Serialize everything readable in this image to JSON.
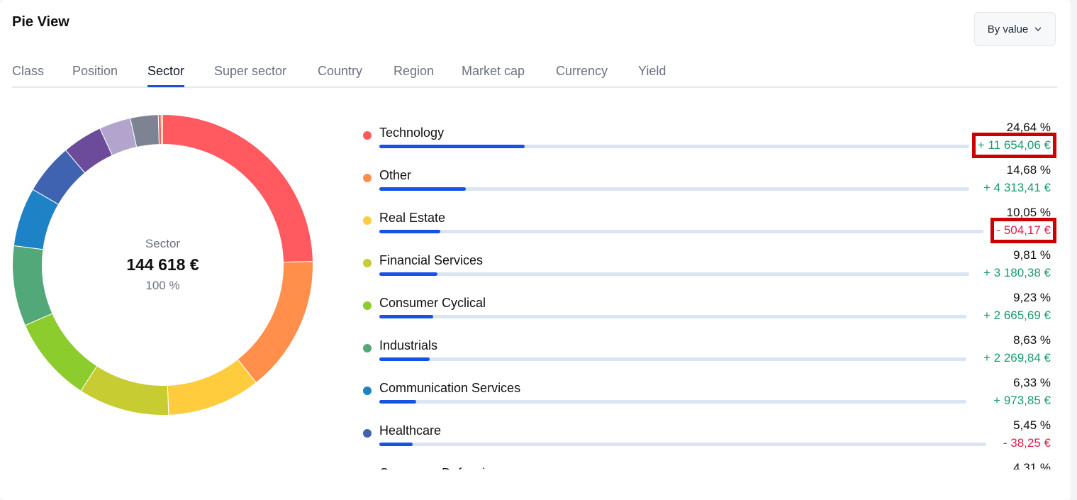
{
  "header": {
    "title": "Pie View",
    "sort_label": "By value"
  },
  "tabs": [
    {
      "label": "Class",
      "active": false
    },
    {
      "label": "Position",
      "active": false
    },
    {
      "label": "Sector",
      "active": true
    },
    {
      "label": "Super sector",
      "active": false
    },
    {
      "label": "Country",
      "active": false
    },
    {
      "label": "Region",
      "active": false
    },
    {
      "label": "Market cap",
      "active": false
    },
    {
      "label": "Currency",
      "active": false
    },
    {
      "label": "Yield",
      "active": false
    }
  ],
  "donut": {
    "label": "Sector",
    "total": "144 618 €",
    "total_pct": "100 %"
  },
  "chart_data": {
    "type": "pie",
    "slices": [
      {
        "label": "Technology",
        "value": 24.64,
        "color": "#ff5a5f"
      },
      {
        "label": "Other",
        "value": 14.68,
        "color": "#ff8f4a"
      },
      {
        "label": "Real Estate",
        "value": 10.05,
        "color": "#ffcc3d"
      },
      {
        "label": "Financial Services",
        "value": 9.81,
        "color": "#c8cc33"
      },
      {
        "label": "Consumer Cyclical",
        "value": 9.23,
        "color": "#8ccc2c"
      },
      {
        "label": "Industrials",
        "value": 8.63,
        "color": "#52a879"
      },
      {
        "label": "Communication Services",
        "value": 6.33,
        "color": "#1e82c6"
      },
      {
        "label": "Healthcare",
        "value": 5.45,
        "color": "#3f63b0"
      },
      {
        "label": "",
        "value": 4.31,
        "color": "#6b4b9a"
      },
      {
        "label": "",
        "value": 3.4,
        "color": "#b2a4cc"
      },
      {
        "label": "",
        "value": 3.0,
        "color": "#7d8393"
      },
      {
        "label": "",
        "value": 0.3,
        "color": "#ff5a5f"
      },
      {
        "label": "",
        "value": 0.17,
        "color": "#ffa040"
      }
    ]
  },
  "sectors": [
    {
      "name": "Technology",
      "pct": "24,64 %",
      "change": "+ 11 654,06 €",
      "sign": "pos",
      "fraction": 0.2464,
      "color": "#ff5a5f",
      "highlight": true
    },
    {
      "name": "Other",
      "pct": "14,68 %",
      "change": "+ 4 313,41 €",
      "sign": "pos",
      "fraction": 0.1468,
      "color": "#ff8f4a",
      "highlight": false
    },
    {
      "name": "Real Estate",
      "pct": "10,05 %",
      "change": "- 504,17 €",
      "sign": "neg",
      "fraction": 0.1005,
      "color": "#ffcc3d",
      "highlight": true
    },
    {
      "name": "Financial Services",
      "pct": "9,81 %",
      "change": "+ 3 180,38 €",
      "sign": "pos",
      "fraction": 0.0981,
      "color": "#c8cc33",
      "highlight": false
    },
    {
      "name": "Consumer Cyclical",
      "pct": "9,23 %",
      "change": "+ 2 665,69 €",
      "sign": "pos",
      "fraction": 0.0923,
      "color": "#8ccc2c",
      "highlight": false
    },
    {
      "name": "Industrials",
      "pct": "8,63 %",
      "change": "+ 2 269,84 €",
      "sign": "pos",
      "fraction": 0.0863,
      "color": "#52a879",
      "highlight": false
    },
    {
      "name": "Communication Services",
      "pct": "6,33 %",
      "change": "+ 973,85 €",
      "sign": "pos",
      "fraction": 0.0633,
      "color": "#1e82c6",
      "highlight": false
    },
    {
      "name": "Healthcare",
      "pct": "5,45 %",
      "change": "- 38,25 €",
      "sign": "neg",
      "fraction": 0.0545,
      "color": "#3f63b0",
      "highlight": false
    },
    {
      "name": "Consumer Defensive",
      "pct": "4,31 %",
      "change": "",
      "sign": "pos",
      "fraction": 0.0431,
      "color": "#6b4b9a",
      "highlight": false
    }
  ]
}
